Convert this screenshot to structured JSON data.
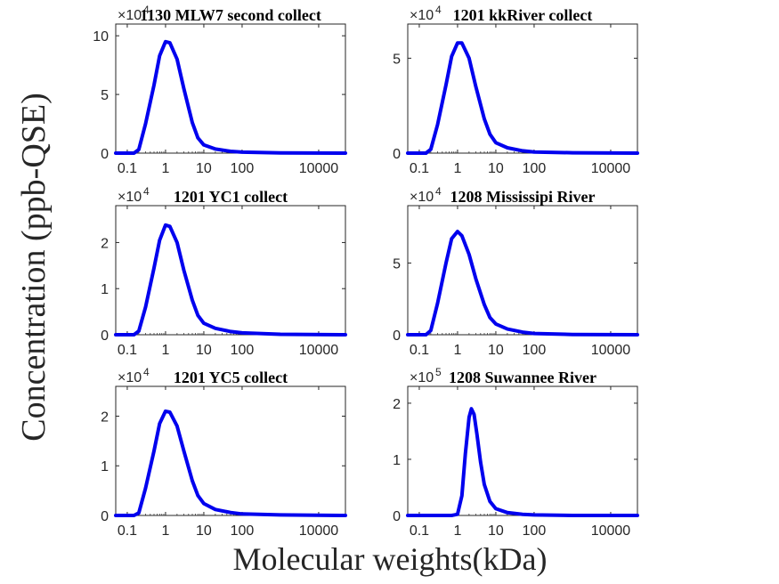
{
  "figure": {
    "ylabel": "Concentration (ppb-QSE)",
    "xlabel": "Molecular weights(kDa)"
  },
  "style": {
    "line_color": "#0000ee",
    "axis_color": "#262626"
  },
  "chart_data": [
    {
      "type": "line",
      "title": "1130 MLW7 second collect",
      "xscale": "log",
      "xlim": [
        0.05,
        50000
      ],
      "xticks": [
        0.1,
        1,
        10,
        100,
        10000
      ],
      "xtick_labels": [
        "0.1",
        "1",
        "10",
        "100",
        "10000"
      ],
      "ylim": [
        0,
        11
      ],
      "yticks": [
        0,
        5,
        10
      ],
      "ytick_labels": [
        "0",
        "5",
        "10"
      ],
      "y_multiplier": "×10^4",
      "exponent": "4",
      "series": [
        {
          "x": [
            0.05,
            0.15,
            0.2,
            0.3,
            0.5,
            0.7,
            1.0,
            1.3,
            2,
            3,
            5,
            7,
            10,
            20,
            50,
            100,
            1000,
            50000
          ],
          "y": [
            0,
            0,
            0.3,
            2.5,
            5.8,
            8.3,
            9.5,
            9.4,
            8.0,
            5.5,
            2.6,
            1.3,
            0.7,
            0.35,
            0.15,
            0.08,
            0.02,
            0
          ]
        }
      ]
    },
    {
      "type": "line",
      "title": "1201 kkRiver collect",
      "xscale": "log",
      "xlim": [
        0.05,
        50000
      ],
      "xticks": [
        0.1,
        1,
        10,
        100,
        10000
      ],
      "xtick_labels": [
        "0.1",
        "1",
        "10",
        "100",
        "10000"
      ],
      "ylim": [
        0,
        6.8
      ],
      "yticks": [
        0,
        5
      ],
      "ytick_labels": [
        "0",
        "5"
      ],
      "y_multiplier": "×10^4",
      "exponent": "4",
      "series": [
        {
          "x": [
            0.05,
            0.15,
            0.2,
            0.3,
            0.5,
            0.7,
            1.0,
            1.3,
            2,
            3,
            5,
            7,
            10,
            20,
            50,
            100,
            1000,
            50000
          ],
          "y": [
            0,
            0,
            0.2,
            1.5,
            3.6,
            5.1,
            5.8,
            5.8,
            5.0,
            3.5,
            1.8,
            1.0,
            0.55,
            0.28,
            0.12,
            0.06,
            0.02,
            0
          ]
        }
      ]
    },
    {
      "type": "line",
      "title": "1201 YC1 collect",
      "xscale": "log",
      "xlim": [
        0.05,
        50000
      ],
      "xticks": [
        0.1,
        1,
        10,
        100,
        10000
      ],
      "xtick_labels": [
        "0.1",
        "1",
        "10",
        "100",
        "10000"
      ],
      "ylim": [
        0,
        2.8
      ],
      "yticks": [
        0,
        1,
        2
      ],
      "ytick_labels": [
        "0",
        "1",
        "2"
      ],
      "y_multiplier": "×10^4",
      "exponent": "4",
      "series": [
        {
          "x": [
            0.05,
            0.15,
            0.2,
            0.3,
            0.5,
            0.7,
            1.0,
            1.3,
            2,
            3,
            5,
            7,
            10,
            20,
            50,
            100,
            1000,
            50000
          ],
          "y": [
            0,
            0,
            0.08,
            0.6,
            1.45,
            2.05,
            2.38,
            2.35,
            2.0,
            1.4,
            0.75,
            0.42,
            0.25,
            0.14,
            0.07,
            0.04,
            0.01,
            0
          ]
        }
      ]
    },
    {
      "type": "line",
      "title": "1208 Mississipi River",
      "xscale": "log",
      "xlim": [
        0.05,
        50000
      ],
      "xticks": [
        0.1,
        1,
        10,
        100,
        10000
      ],
      "xtick_labels": [
        "0.1",
        "1",
        "10",
        "100",
        "10000"
      ],
      "ylim": [
        0,
        9
      ],
      "yticks": [
        0,
        5
      ],
      "ytick_labels": [
        "0",
        "5"
      ],
      "y_multiplier": "×10^4",
      "exponent": "4",
      "series": [
        {
          "x": [
            0.05,
            0.15,
            0.2,
            0.3,
            0.5,
            0.7,
            1.0,
            1.3,
            2,
            3,
            5,
            7,
            10,
            20,
            50,
            100,
            1000,
            50000
          ],
          "y": [
            0,
            0,
            0.3,
            2.2,
            5.0,
            6.7,
            7.2,
            6.9,
            5.6,
            3.9,
            2.1,
            1.2,
            0.75,
            0.4,
            0.18,
            0.09,
            0.02,
            0
          ]
        }
      ]
    },
    {
      "type": "line",
      "title": "1201 YC5 collect",
      "xscale": "log",
      "xlim": [
        0.05,
        50000
      ],
      "xticks": [
        0.1,
        1,
        10,
        100,
        10000
      ],
      "xtick_labels": [
        "0.1",
        "1",
        "10",
        "100",
        "10000"
      ],
      "ylim": [
        0,
        2.6
      ],
      "yticks": [
        0,
        1,
        2
      ],
      "ytick_labels": [
        "0",
        "1",
        "2"
      ],
      "y_multiplier": "×10^4",
      "exponent": "4",
      "series": [
        {
          "x": [
            0.05,
            0.15,
            0.2,
            0.3,
            0.5,
            0.7,
            1.0,
            1.3,
            2,
            3,
            5,
            7,
            10,
            20,
            50,
            100,
            1000,
            50000
          ],
          "y": [
            0,
            0,
            0.05,
            0.55,
            1.3,
            1.85,
            2.1,
            2.08,
            1.8,
            1.3,
            0.7,
            0.4,
            0.24,
            0.12,
            0.06,
            0.03,
            0.01,
            0
          ]
        }
      ]
    },
    {
      "type": "line",
      "title": "1208 Suwannee River",
      "xscale": "log",
      "xlim": [
        0.05,
        50000
      ],
      "xticks": [
        0.1,
        1,
        10,
        100,
        10000
      ],
      "xtick_labels": [
        "0.1",
        "1",
        "10",
        "100",
        "10000"
      ],
      "ylim": [
        0,
        2.3
      ],
      "yticks": [
        0,
        1,
        2
      ],
      "ytick_labels": [
        "0",
        "1",
        "2"
      ],
      "y_multiplier": "×10^5",
      "exponent": "5",
      "series": [
        {
          "x": [
            0.05,
            0.7,
            1.0,
            1.3,
            1.6,
            2.0,
            2.3,
            2.7,
            3.2,
            4,
            5,
            7,
            10,
            20,
            50,
            100,
            1000,
            50000
          ],
          "y": [
            0,
            0,
            0.02,
            0.35,
            1.1,
            1.75,
            1.9,
            1.8,
            1.45,
            0.95,
            0.55,
            0.25,
            0.12,
            0.05,
            0.02,
            0.01,
            0,
            0
          ]
        }
      ]
    }
  ]
}
